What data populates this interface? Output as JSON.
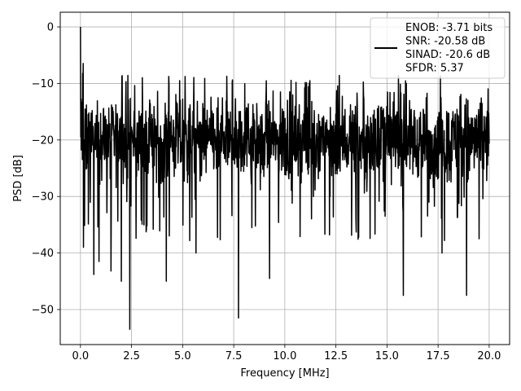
{
  "chart_data": {
    "type": "line",
    "title": "",
    "xlabel": "Frequency [MHz]",
    "ylabel": "PSD [dB]",
    "xlim": [
      -0.99,
      21.0
    ],
    "ylim": [
      -56.2,
      2.6
    ],
    "grid": true,
    "x_ticks": [
      0.0,
      2.5,
      5.0,
      7.5,
      10.0,
      12.5,
      15.0,
      17.5,
      20.0
    ],
    "x_tick_labels": [
      "0.0",
      "2.5",
      "5.0",
      "7.5",
      "10.0",
      "12.5",
      "15.0",
      "17.5",
      "20.0"
    ],
    "y_ticks": [
      0,
      -10,
      -20,
      -30,
      -40,
      -50
    ],
    "y_tick_labels": [
      "0",
      "−10",
      "−20",
      "−30",
      "−40",
      "−50"
    ],
    "legend_position": "top-right",
    "series": [
      {
        "color": "#000000",
        "x_range": [
          0.0,
          20.0
        ],
        "approx_points": 1500,
        "peak": {
          "x": 0.0,
          "y": 0.0
        },
        "noise_floor_typical_range": [
          -29.0,
          -12.0
        ],
        "noise_peak_max": -8.5,
        "deep_dips": [
          {
            "x": 0.15,
            "y": -39.0
          },
          {
            "x": 0.65,
            "y": -43.8
          },
          {
            "x": 0.9,
            "y": -41.5
          },
          {
            "x": 1.5,
            "y": -43.2
          },
          {
            "x": 2.0,
            "y": -45.0
          },
          {
            "x": 2.42,
            "y": -53.5
          },
          {
            "x": 4.2,
            "y": -45.0
          },
          {
            "x": 5.65,
            "y": -40.0
          },
          {
            "x": 7.73,
            "y": -51.5
          },
          {
            "x": 9.25,
            "y": -44.5
          },
          {
            "x": 15.8,
            "y": -47.5
          },
          {
            "x": 18.9,
            "y": -47.5
          },
          {
            "x": 17.7,
            "y": -40.0
          }
        ]
      }
    ],
    "legend_entries": [
      "ENOB: -3.71 bits",
      "SNR: -20.58 dB",
      "SINAD: -20.6 dB",
      "SFDR: 5.37"
    ],
    "style": {
      "line_color": "#000000",
      "grid_color": "#b0b0b0",
      "axis_color": "#000000",
      "background": "#ffffff"
    }
  }
}
